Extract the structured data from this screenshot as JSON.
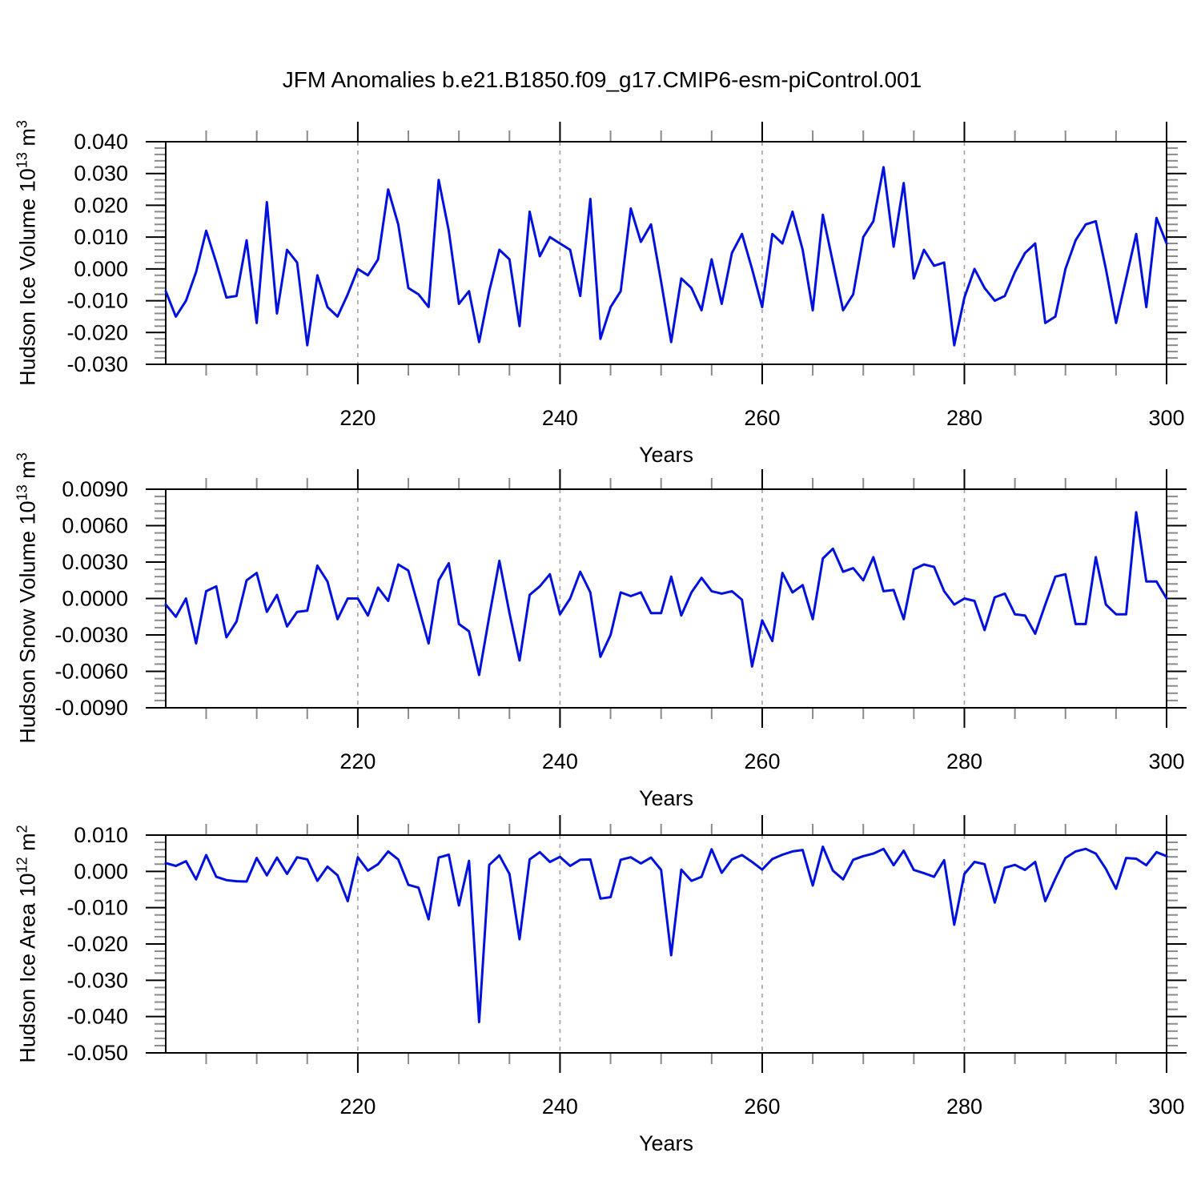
{
  "title": "JFM Anomalies b.e21.B1850.f09_g17.CMIP6-esm-piControl.001",
  "line_color": "#0011dd",
  "chart_data": [
    {
      "type": "line",
      "panel": "hudson-ice-volume",
      "ylabel": {
        "base": "Hudson Ice Volume 10",
        "sup1": "13",
        "mid": " m",
        "sup2": "3"
      },
      "xlabel": "Years",
      "x_start": 201,
      "x_end": 300,
      "ylim": [
        -0.03,
        0.04
      ],
      "ytick_labels": [
        "0.040",
        "0.030",
        "0.020",
        "0.010",
        "0.000",
        "-0.010",
        "-0.020",
        "-0.030"
      ],
      "ytick_minor_step": 0.002,
      "xtick_values": [
        220,
        240,
        260,
        280,
        300
      ],
      "xtick_labels": [
        "220",
        "240",
        "260",
        "280",
        "300"
      ],
      "xminor_step": 5,
      "gridlines_x": [
        220,
        240,
        260,
        280
      ],
      "grid": "dashed-vertical",
      "legend": "none",
      "series": [
        {
          "name": "JFM ice volume anomaly",
          "x_years_annual_from": 201,
          "values": [
            -0.007,
            -0.015,
            -0.01,
            -0.001,
            0.012,
            0.002,
            -0.009,
            -0.0085,
            0.009,
            -0.017,
            0.021,
            -0.014,
            0.006,
            0.002,
            -0.024,
            -0.002,
            -0.012,
            -0.015,
            -0.008,
            0.0,
            -0.002,
            0.003,
            0.025,
            0.014,
            -0.006,
            -0.008,
            -0.012,
            0.028,
            0.012,
            -0.011,
            -0.007,
            -0.023,
            -0.007,
            0.006,
            0.003,
            -0.018,
            0.018,
            0.004,
            0.01,
            0.008,
            0.006,
            -0.0085,
            0.022,
            -0.022,
            -0.012,
            -0.007,
            0.019,
            0.0085,
            0.014,
            -0.004,
            -0.023,
            -0.003,
            -0.006,
            -0.013,
            0.003,
            -0.011,
            0.005,
            0.011,
            0.0,
            -0.012,
            0.011,
            0.008,
            0.018,
            0.006,
            -0.013,
            0.017,
            0.002,
            -0.013,
            -0.008,
            0.01,
            0.015,
            0.032,
            0.007,
            0.027,
            -0.003,
            0.006,
            0.001,
            0.002,
            -0.024,
            -0.009,
            0.0,
            -0.006,
            -0.01,
            -0.0085,
            -0.001,
            0.005,
            0.008,
            -0.017,
            -0.015,
            0.0,
            0.009,
            0.014,
            0.015,
            0.0,
            -0.017,
            -0.003,
            0.011,
            -0.012,
            0.016,
            0.008
          ]
        }
      ]
    },
    {
      "type": "line",
      "panel": "hudson-snow-volume",
      "ylabel": {
        "base": "Hudson Snow Volume 10",
        "sup1": "13",
        "mid": " m",
        "sup2": "3"
      },
      "xlabel": "Years",
      "x_start": 201,
      "x_end": 300,
      "ylim": [
        -0.009,
        0.009
      ],
      "ytick_labels": [
        "0.0090",
        "0.0060",
        "0.0030",
        "0.0000",
        "-0.0030",
        "-0.0060",
        "-0.0090"
      ],
      "ytick_minor_step": 0.0006,
      "xtick_values": [
        220,
        240,
        260,
        280,
        300
      ],
      "xtick_labels": [
        "220",
        "240",
        "260",
        "280",
        "300"
      ],
      "xminor_step": 5,
      "gridlines_x": [
        220,
        240,
        260,
        280
      ],
      "grid": "dashed-vertical",
      "legend": "none",
      "series": [
        {
          "name": "JFM snow volume anomaly",
          "x_years_annual_from": 201,
          "values": [
            -0.0005,
            -0.0015,
            0.0,
            -0.0037,
            0.0006,
            0.001,
            -0.0032,
            -0.0019,
            0.0015,
            0.0021,
            -0.0011,
            0.0003,
            -0.0023,
            -0.0011,
            -0.001,
            0.0027,
            0.0014,
            -0.0017,
            0.0,
            0.0,
            -0.0014,
            0.0009,
            -0.0002,
            0.0028,
            0.0023,
            -0.0007,
            -0.0037,
            0.0015,
            0.0029,
            -0.0021,
            -0.0027,
            -0.0063,
            -0.0015,
            0.0031,
            -0.0012,
            -0.0051,
            0.0003,
            0.001,
            0.002,
            -0.0013,
            0.0,
            0.0022,
            0.0005,
            -0.0048,
            -0.003,
            0.0005,
            0.0002,
            0.0005,
            -0.0012,
            -0.0012,
            0.0018,
            -0.0014,
            0.0005,
            0.0017,
            0.0006,
            0.0004,
            0.0006,
            -0.0001,
            -0.0056,
            -0.0018,
            -0.0035,
            0.0021,
            0.0005,
            0.0011,
            -0.0017,
            0.0033,
            0.0041,
            0.0022,
            0.0025,
            0.0015,
            0.0034,
            0.0006,
            0.0007,
            -0.0017,
            0.0024,
            0.0028,
            0.0026,
            0.0006,
            -0.0005,
            0.0,
            -0.0002,
            -0.0026,
            0.0001,
            0.0004,
            -0.0013,
            -0.0014,
            -0.0029,
            -0.0005,
            0.0018,
            0.002,
            -0.0021,
            -0.0021,
            0.0034,
            -0.0005,
            -0.0013,
            -0.0013,
            0.0071,
            0.0014,
            0.0014,
            0.0
          ]
        }
      ]
    },
    {
      "type": "line",
      "panel": "hudson-ice-area",
      "ylabel": {
        "base": "Hudson Ice Area 10",
        "sup1": "12",
        "mid": " m",
        "sup2": "2"
      },
      "xlabel": "Years",
      "x_start": 201,
      "x_end": 300,
      "ylim": [
        -0.05,
        0.01
      ],
      "ytick_labels": [
        "0.010",
        "0.000",
        "-0.010",
        "-0.020",
        "-0.030",
        "-0.040",
        "-0.050"
      ],
      "ytick_minor_step": 0.002,
      "xtick_values": [
        220,
        240,
        260,
        280,
        300
      ],
      "xtick_labels": [
        "220",
        "240",
        "260",
        "280",
        "300"
      ],
      "xminor_step": 5,
      "gridlines_x": [
        220,
        240,
        260,
        280
      ],
      "grid": "dashed-vertical",
      "legend": "none",
      "series": [
        {
          "name": "JFM ice area anomaly",
          "x_years_annual_from": 201,
          "values": [
            0.0023,
            0.0015,
            0.0028,
            -0.0022,
            0.0045,
            -0.0015,
            -0.0024,
            -0.0027,
            -0.0028,
            0.0037,
            -0.0011,
            0.0038,
            -0.0007,
            0.0039,
            0.0033,
            -0.0026,
            0.0013,
            -0.0011,
            -0.0082,
            0.0039,
            0.0002,
            0.002,
            0.0055,
            0.0033,
            -0.0037,
            -0.0045,
            -0.0132,
            0.0038,
            0.0046,
            -0.0094,
            0.0029,
            -0.0415,
            0.0018,
            0.0044,
            -0.0007,
            -0.0187,
            0.0033,
            0.0053,
            0.0026,
            0.004,
            0.0015,
            0.0032,
            0.0033,
            -0.0075,
            -0.0071,
            0.0032,
            0.0039,
            0.0022,
            0.0038,
            0.0004,
            -0.0231,
            0.0005,
            -0.0026,
            -0.0015,
            0.0061,
            -0.0004,
            0.0033,
            0.0045,
            0.0026,
            0.0005,
            0.0034,
            0.0046,
            0.0055,
            0.0059,
            -0.0039,
            0.0068,
            0.0002,
            -0.0022,
            0.0032,
            0.0042,
            0.0049,
            0.0062,
            0.0017,
            0.0057,
            0.0004,
            -0.0005,
            -0.0015,
            0.0031,
            -0.0147,
            -0.0007,
            0.0026,
            0.002,
            -0.0086,
            0.001,
            0.0018,
            0.0004,
            0.0026,
            -0.0082,
            -0.002,
            0.0037,
            0.0055,
            0.0062,
            0.0049,
            0.0007,
            -0.0048,
            0.0037,
            0.0035,
            0.0017,
            0.0053,
            0.0042
          ]
        }
      ]
    }
  ]
}
